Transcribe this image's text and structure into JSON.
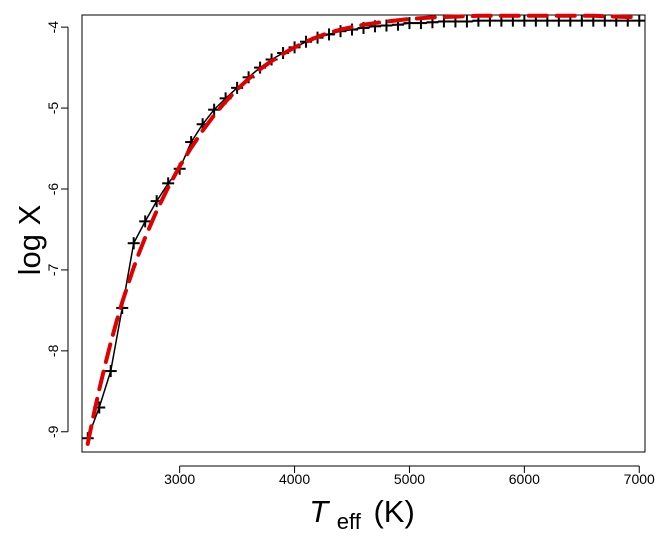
{
  "chart_data": {
    "type": "line",
    "title": "",
    "xlabel": {
      "symbol": "T",
      "subscript": "eff",
      "unit": "(K)"
    },
    "ylabel": "log X",
    "xlim": [
      2150,
      7050
    ],
    "ylim": [
      -9.25,
      -3.85
    ],
    "x_ticks": [
      3000,
      4000,
      5000,
      6000,
      7000
    ],
    "y_ticks": [
      -9,
      -8,
      -7,
      -6,
      -5,
      -4
    ],
    "grid": false,
    "legend": "none",
    "series": [
      {
        "style": "points",
        "marker": "plus",
        "color": "#000000",
        "points": [
          [
            2200,
            -9.08
          ],
          [
            2300,
            -8.7
          ],
          [
            2400,
            -8.25
          ],
          [
            2500,
            -7.47
          ],
          [
            2600,
            -6.67
          ],
          [
            2700,
            -6.4
          ],
          [
            2800,
            -6.15
          ],
          [
            2900,
            -5.93
          ],
          [
            3000,
            -5.75
          ],
          [
            3100,
            -5.42
          ],
          [
            3200,
            -5.2
          ],
          [
            3300,
            -5.02
          ],
          [
            3400,
            -4.88
          ],
          [
            3500,
            -4.75
          ],
          [
            3600,
            -4.62
          ],
          [
            3700,
            -4.5
          ],
          [
            3800,
            -4.4
          ],
          [
            3900,
            -4.32
          ],
          [
            4000,
            -4.25
          ],
          [
            4100,
            -4.18
          ],
          [
            4200,
            -4.13
          ],
          [
            4300,
            -4.09
          ],
          [
            4400,
            -4.05
          ],
          [
            4500,
            -4.03
          ],
          [
            4600,
            -4.01
          ],
          [
            4700,
            -3.99
          ],
          [
            4800,
            -3.98
          ],
          [
            4900,
            -3.97
          ],
          [
            5000,
            -3.95
          ],
          [
            5100,
            -3.95
          ],
          [
            5200,
            -3.94
          ],
          [
            5300,
            -3.93
          ],
          [
            5400,
            -3.93
          ],
          [
            5500,
            -3.93
          ],
          [
            5600,
            -3.92
          ],
          [
            5700,
            -3.92
          ],
          [
            5800,
            -3.92
          ],
          [
            5900,
            -3.92
          ],
          [
            6000,
            -3.92
          ],
          [
            6100,
            -3.92
          ],
          [
            6200,
            -3.92
          ],
          [
            6300,
            -3.92
          ],
          [
            6400,
            -3.92
          ],
          [
            6500,
            -3.92
          ],
          [
            6600,
            -3.92
          ],
          [
            6700,
            -3.92
          ],
          [
            6800,
            -3.92
          ],
          [
            6900,
            -3.92
          ],
          [
            7000,
            -3.92
          ]
        ]
      },
      {
        "style": "line",
        "color": "#000000",
        "points": [
          [
            2200,
            -9.08
          ],
          [
            2300,
            -8.7
          ],
          [
            2400,
            -8.25
          ],
          [
            2500,
            -7.47
          ],
          [
            2600,
            -6.67
          ],
          [
            2700,
            -6.4
          ],
          [
            2800,
            -6.15
          ],
          [
            2900,
            -5.93
          ],
          [
            3000,
            -5.75
          ],
          [
            3100,
            -5.42
          ],
          [
            3200,
            -5.2
          ],
          [
            3300,
            -5.02
          ],
          [
            3400,
            -4.88
          ],
          [
            3500,
            -4.75
          ],
          [
            3600,
            -4.62
          ],
          [
            3700,
            -4.5
          ],
          [
            3800,
            -4.4
          ],
          [
            3900,
            -4.32
          ],
          [
            4000,
            -4.25
          ],
          [
            4100,
            -4.18
          ],
          [
            4200,
            -4.13
          ],
          [
            4300,
            -4.09
          ],
          [
            4400,
            -4.05
          ],
          [
            4500,
            -4.03
          ],
          [
            4600,
            -4.01
          ],
          [
            4700,
            -3.99
          ],
          [
            4800,
            -3.98
          ],
          [
            4900,
            -3.97
          ],
          [
            5000,
            -3.95
          ],
          [
            5100,
            -3.95
          ],
          [
            5200,
            -3.94
          ],
          [
            5300,
            -3.93
          ],
          [
            5400,
            -3.93
          ],
          [
            5500,
            -3.93
          ],
          [
            5600,
            -3.92
          ],
          [
            5700,
            -3.92
          ],
          [
            5800,
            -3.92
          ],
          [
            5900,
            -3.92
          ],
          [
            6000,
            -3.92
          ],
          [
            6100,
            -3.92
          ],
          [
            6200,
            -3.92
          ],
          [
            6300,
            -3.92
          ],
          [
            6400,
            -3.92
          ],
          [
            6500,
            -3.92
          ],
          [
            6600,
            -3.92
          ],
          [
            6700,
            -3.92
          ],
          [
            6800,
            -3.92
          ],
          [
            6900,
            -3.92
          ],
          [
            7000,
            -3.92
          ]
        ]
      },
      {
        "style": "dashed",
        "color": "#e00000",
        "points": [
          [
            2200,
            -9.15
          ],
          [
            2250,
            -8.8
          ],
          [
            2300,
            -8.48
          ],
          [
            2350,
            -8.18
          ],
          [
            2400,
            -7.9
          ],
          [
            2450,
            -7.64
          ],
          [
            2500,
            -7.4
          ],
          [
            2550,
            -7.18
          ],
          [
            2600,
            -6.97
          ],
          [
            2650,
            -6.78
          ],
          [
            2700,
            -6.6
          ],
          [
            2800,
            -6.27
          ],
          [
            2900,
            -5.98
          ],
          [
            3000,
            -5.72
          ],
          [
            3100,
            -5.49
          ],
          [
            3200,
            -5.28
          ],
          [
            3300,
            -5.09
          ],
          [
            3400,
            -4.92
          ],
          [
            3500,
            -4.77
          ],
          [
            3600,
            -4.64
          ],
          [
            3700,
            -4.52
          ],
          [
            3800,
            -4.42
          ],
          [
            3900,
            -4.33
          ],
          [
            4000,
            -4.25
          ],
          [
            4100,
            -4.18
          ],
          [
            4200,
            -4.12
          ],
          [
            4300,
            -4.07
          ],
          [
            4400,
            -4.03
          ],
          [
            4500,
            -4
          ],
          [
            4600,
            -3.97
          ],
          [
            4800,
            -3.93
          ],
          [
            5000,
            -3.9
          ],
          [
            5200,
            -3.88
          ],
          [
            5400,
            -3.87
          ],
          [
            5600,
            -3.86
          ],
          [
            5800,
            -3.86
          ],
          [
            6000,
            -3.86
          ],
          [
            6200,
            -3.86
          ],
          [
            6400,
            -3.86
          ],
          [
            6600,
            -3.86
          ],
          [
            6800,
            -3.87
          ],
          [
            7000,
            -3.88
          ]
        ]
      }
    ]
  }
}
